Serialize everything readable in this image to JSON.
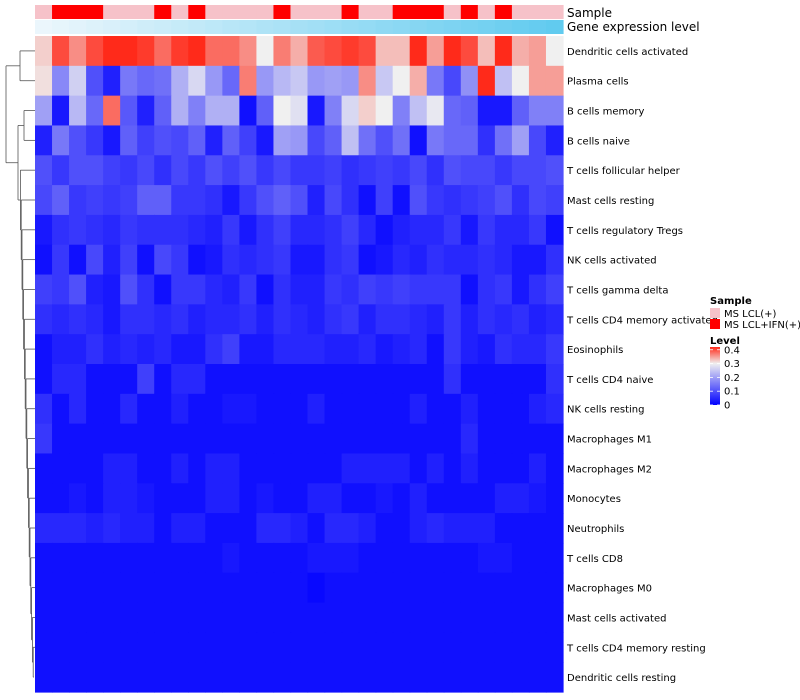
{
  "chart_data": {
    "type": "heatmap",
    "title": "",
    "annotation_tracks": [
      {
        "name": "Sample",
        "label": "Sample"
      },
      {
        "name": "Gene expression level",
        "label": "Gene expression level"
      }
    ],
    "rows": [
      "Dendritic cells activated",
      "Plasma cells",
      "B cells memory",
      "B cells naive",
      "T cells follicular helper",
      "Mast cells resting",
      "T cells regulatory  Tregs",
      "NK cells activated",
      "T cells gamma delta",
      "T cells CD4 memory activated",
      "Eosinophils",
      "T cells CD4 naive",
      "NK cells resting",
      "Macrophages M1",
      "Macrophages M2",
      "Monocytes",
      "Neutrophils",
      "T cells CD8",
      "Macrophages M0",
      "Mast cells activated",
      "T cells CD4 memory resting",
      "Dendritic cells resting"
    ],
    "sample_groups": [
      "LCL",
      "IFN",
      "IFN",
      "IFN",
      "LCL",
      "LCL",
      "LCL",
      "IFN",
      "LCL",
      "IFN",
      "LCL",
      "LCL",
      "LCL",
      "LCL",
      "IFN",
      "LCL",
      "LCL",
      "LCL",
      "IFN",
      "LCL",
      "LCL",
      "IFN",
      "IFN",
      "IFN",
      "LCL",
      "IFN",
      "LCL",
      "IFN",
      "LCL",
      "LCL",
      "LCL"
    ],
    "expression_level": [
      0.02,
      0.05,
      0.08,
      0.11,
      0.14,
      0.17,
      0.2,
      0.23,
      0.26,
      0.29,
      0.32,
      0.35,
      0.38,
      0.41,
      0.44,
      0.47,
      0.5,
      0.53,
      0.56,
      0.59,
      0.62,
      0.65,
      0.68,
      0.71,
      0.74,
      0.77,
      0.8,
      0.83,
      0.86,
      0.89,
      0.92
    ],
    "values": [
      [
        0.32,
        0.4,
        0.36,
        0.4,
        0.42,
        0.42,
        0.41,
        0.38,
        0.41,
        0.42,
        0.38,
        0.38,
        0.36,
        0.3,
        0.37,
        0.34,
        0.39,
        0.4,
        0.41,
        0.4,
        0.33,
        0.33,
        0.42,
        0.35,
        0.42,
        0.4,
        0.33,
        0.42,
        0.34,
        0.35,
        0.3
      ],
      [
        0.31,
        0.17,
        0.26,
        0.1,
        0.04,
        0.15,
        0.13,
        0.14,
        0.22,
        0.27,
        0.19,
        0.13,
        0.37,
        0.19,
        0.23,
        0.25,
        0.19,
        0.2,
        0.19,
        0.36,
        0.25,
        0.3,
        0.34,
        0.15,
        0.09,
        0.18,
        0.42,
        0.24,
        0.3,
        0.35,
        0.35
      ],
      [
        0.2,
        0.03,
        0.23,
        0.13,
        0.38,
        0.11,
        0.04,
        0.12,
        0.22,
        0.16,
        0.22,
        0.22,
        0.02,
        0.12,
        0.3,
        0.28,
        0.03,
        0.16,
        0.27,
        0.32,
        0.3,
        0.16,
        0.24,
        0.29,
        0.13,
        0.12,
        0.03,
        0.03,
        0.12,
        0.16,
        0.16
      ],
      [
        0.04,
        0.15,
        0.1,
        0.07,
        0.03,
        0.12,
        0.08,
        0.1,
        0.09,
        0.12,
        0.04,
        0.12,
        0.08,
        0.03,
        0.2,
        0.19,
        0.09,
        0.12,
        0.24,
        0.14,
        0.1,
        0.14,
        0.02,
        0.15,
        0.13,
        0.13,
        0.06,
        0.14,
        0.2,
        0.09,
        0.04
      ],
      [
        0.1,
        0.07,
        0.1,
        0.1,
        0.08,
        0.07,
        0.09,
        0.06,
        0.09,
        0.07,
        0.1,
        0.08,
        0.1,
        0.07,
        0.09,
        0.07,
        0.07,
        0.08,
        0.06,
        0.07,
        0.08,
        0.07,
        0.09,
        0.06,
        0.1,
        0.09,
        0.09,
        0.07,
        0.09,
        0.09,
        0.1
      ],
      [
        0.09,
        0.12,
        0.07,
        0.08,
        0.07,
        0.08,
        0.12,
        0.12,
        0.07,
        0.07,
        0.06,
        0.03,
        0.07,
        0.1,
        0.12,
        0.1,
        0.04,
        0.09,
        0.06,
        0.02,
        0.08,
        0.02,
        0.1,
        0.07,
        0.06,
        0.07,
        0.08,
        0.1,
        0.06,
        0.09,
        0.08
      ],
      [
        0.03,
        0.06,
        0.07,
        0.06,
        0.05,
        0.07,
        0.06,
        0.06,
        0.06,
        0.05,
        0.04,
        0.07,
        0.03,
        0.06,
        0.08,
        0.05,
        0.05,
        0.06,
        0.08,
        0.05,
        0.02,
        0.04,
        0.05,
        0.05,
        0.07,
        0.03,
        0.07,
        0.05,
        0.05,
        0.07,
        0.02
      ],
      [
        0.02,
        0.07,
        0.02,
        0.09,
        0.04,
        0.08,
        0.02,
        0.09,
        0.07,
        0.02,
        0.03,
        0.06,
        0.05,
        0.06,
        0.07,
        0.03,
        0.03,
        0.06,
        0.07,
        0.02,
        0.03,
        0.05,
        0.04,
        0.06,
        0.05,
        0.05,
        0.06,
        0.05,
        0.03,
        0.03,
        0.06
      ],
      [
        0.08,
        0.07,
        0.1,
        0.04,
        0.03,
        0.1,
        0.06,
        0.02,
        0.07,
        0.07,
        0.05,
        0.04,
        0.07,
        0.02,
        0.06,
        0.04,
        0.04,
        0.07,
        0.06,
        0.08,
        0.07,
        0.08,
        0.07,
        0.07,
        0.07,
        0.02,
        0.06,
        0.07,
        0.03,
        0.06,
        0.08
      ],
      [
        0.06,
        0.05,
        0.06,
        0.05,
        0.03,
        0.06,
        0.06,
        0.05,
        0.06,
        0.04,
        0.05,
        0.05,
        0.06,
        0.04,
        0.06,
        0.05,
        0.04,
        0.06,
        0.07,
        0.04,
        0.06,
        0.06,
        0.05,
        0.04,
        0.07,
        0.04,
        0.06,
        0.05,
        0.06,
        0.04,
        0.05
      ],
      [
        0.02,
        0.04,
        0.04,
        0.06,
        0.04,
        0.05,
        0.04,
        0.05,
        0.03,
        0.03,
        0.06,
        0.08,
        0.03,
        0.03,
        0.05,
        0.05,
        0.05,
        0.04,
        0.04,
        0.05,
        0.03,
        0.04,
        0.05,
        0.02,
        0.07,
        0.04,
        0.03,
        0.06,
        0.05,
        0.05,
        0.07
      ],
      [
        0.02,
        0.05,
        0.05,
        0.02,
        0.02,
        0.02,
        0.08,
        0.02,
        0.05,
        0.05,
        0.02,
        0.02,
        0.02,
        0.02,
        0.02,
        0.02,
        0.02,
        0.02,
        0.02,
        0.02,
        0.02,
        0.02,
        0.02,
        0.02,
        0.06,
        0.02,
        0.02,
        0.02,
        0.02,
        0.02,
        0.06
      ],
      [
        0.06,
        0.02,
        0.05,
        0.02,
        0.02,
        0.05,
        0.02,
        0.02,
        0.04,
        0.02,
        0.02,
        0.03,
        0.03,
        0.02,
        0.02,
        0.02,
        0.04,
        0.02,
        0.02,
        0.02,
        0.02,
        0.02,
        0.04,
        0.02,
        0.02,
        0.04,
        0.02,
        0.02,
        0.02,
        0.04,
        0.05
      ],
      [
        0.07,
        0.02,
        0.02,
        0.02,
        0.02,
        0.02,
        0.02,
        0.02,
        0.02,
        0.02,
        0.02,
        0.02,
        0.02,
        0.02,
        0.02,
        0.02,
        0.02,
        0.02,
        0.02,
        0.02,
        0.02,
        0.02,
        0.02,
        0.02,
        0.02,
        0.05,
        0.02,
        0.02,
        0.02,
        0.02,
        0.02
      ],
      [
        0.02,
        0.02,
        0.02,
        0.02,
        0.04,
        0.04,
        0.02,
        0.02,
        0.04,
        0.02,
        0.04,
        0.04,
        0.02,
        0.02,
        0.02,
        0.02,
        0.02,
        0.02,
        0.04,
        0.04,
        0.04,
        0.04,
        0.02,
        0.04,
        0.02,
        0.04,
        0.02,
        0.02,
        0.02,
        0.04,
        0.02
      ],
      [
        0.02,
        0.02,
        0.03,
        0.02,
        0.04,
        0.04,
        0.03,
        0.02,
        0.02,
        0.02,
        0.04,
        0.04,
        0.02,
        0.03,
        0.02,
        0.02,
        0.04,
        0.04,
        0.02,
        0.02,
        0.03,
        0.02,
        0.04,
        0.02,
        0.02,
        0.02,
        0.02,
        0.04,
        0.04,
        0.03,
        0.02
      ],
      [
        0.05,
        0.05,
        0.05,
        0.04,
        0.05,
        0.04,
        0.04,
        0.02,
        0.04,
        0.04,
        0.02,
        0.02,
        0.02,
        0.05,
        0.05,
        0.04,
        0.02,
        0.05,
        0.05,
        0.04,
        0.02,
        0.02,
        0.04,
        0.05,
        0.04,
        0.04,
        0.04,
        0.02,
        0.02,
        0.02,
        0.02
      ],
      [
        0.02,
        0.02,
        0.02,
        0.02,
        0.02,
        0.02,
        0.02,
        0.02,
        0.02,
        0.02,
        0.02,
        0.03,
        0.02,
        0.02,
        0.02,
        0.02,
        0.03,
        0.03,
        0.03,
        0.02,
        0.02,
        0.02,
        0.02,
        0.02,
        0.02,
        0.02,
        0.03,
        0.03,
        0.02,
        0.02,
        0.02
      ],
      [
        0.02,
        0.02,
        0.02,
        0.02,
        0.02,
        0.02,
        0.02,
        0.02,
        0.02,
        0.02,
        0.02,
        0.02,
        0.02,
        0.02,
        0.02,
        0.02,
        0.01,
        0.02,
        0.02,
        0.02,
        0.02,
        0.02,
        0.02,
        0.02,
        0.02,
        0.02,
        0.02,
        0.02,
        0.02,
        0.02,
        0.02
      ],
      [
        0.02,
        0.02,
        0.02,
        0.02,
        0.02,
        0.02,
        0.02,
        0.02,
        0.02,
        0.02,
        0.02,
        0.02,
        0.02,
        0.02,
        0.02,
        0.02,
        0.02,
        0.02,
        0.02,
        0.02,
        0.02,
        0.02,
        0.02,
        0.02,
        0.02,
        0.02,
        0.02,
        0.02,
        0.02,
        0.02,
        0.02
      ],
      [
        0.02,
        0.02,
        0.02,
        0.02,
        0.02,
        0.02,
        0.02,
        0.02,
        0.02,
        0.02,
        0.02,
        0.02,
        0.02,
        0.02,
        0.02,
        0.02,
        0.02,
        0.02,
        0.02,
        0.02,
        0.02,
        0.02,
        0.02,
        0.02,
        0.02,
        0.02,
        0.02,
        0.02,
        0.02,
        0.02,
        0.02
      ],
      [
        0.02,
        0.02,
        0.02,
        0.02,
        0.02,
        0.02,
        0.02,
        0.02,
        0.02,
        0.02,
        0.02,
        0.02,
        0.02,
        0.02,
        0.02,
        0.02,
        0.02,
        0.02,
        0.02,
        0.02,
        0.02,
        0.02,
        0.02,
        0.02,
        0.02,
        0.02,
        0.02,
        0.02,
        0.02,
        0.02,
        0.02
      ]
    ],
    "legend": {
      "sample": {
        "title": "Sample",
        "entries": [
          {
            "label": "MS LCL(+)",
            "key": "LCL",
            "color": "#f6c2c9"
          },
          {
            "label": "MS LCL+IFN(+)",
            "key": "IFN",
            "color": "#ff0000"
          }
        ]
      },
      "level": {
        "title": "Level",
        "ticks": [
          {
            "value": 0.4,
            "label": "0.4"
          },
          {
            "value": 0.3,
            "label": "0.3"
          },
          {
            "value": 0.2,
            "label": "0.2"
          },
          {
            "value": 0.1,
            "label": "0.1"
          },
          {
            "value": 0,
            "label": "0"
          }
        ],
        "range": [
          0,
          0.42
        ]
      }
    },
    "colors": {
      "low": "#0000ff",
      "mid": "#f0f0f0",
      "high": "#ff2a1a",
      "expression_low": "#eef7fc",
      "expression_high": "#55c7ee",
      "dendrogram": "#555555"
    }
  }
}
